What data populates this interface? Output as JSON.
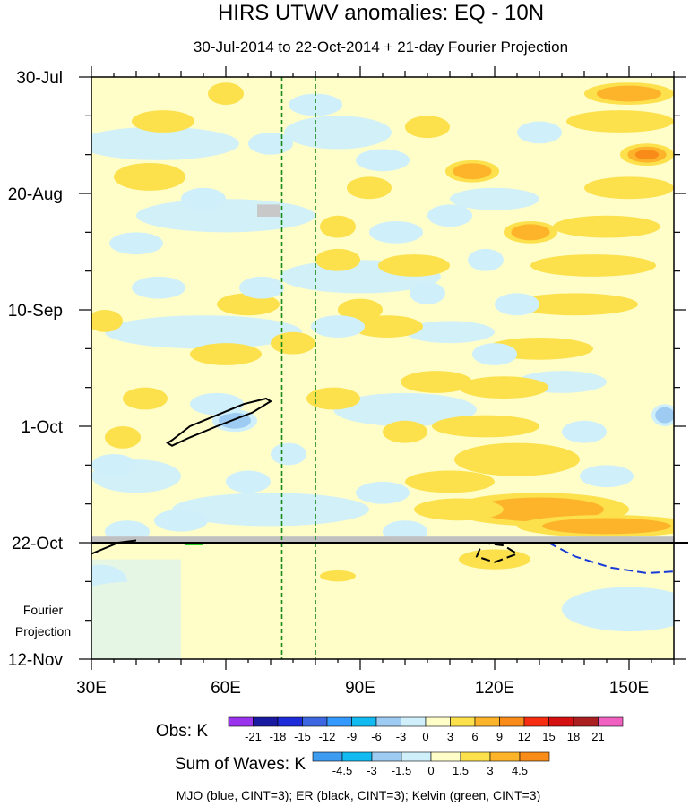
{
  "chart_data": {
    "type": "heatmap",
    "title": "HIRS UTWV anomalies: EQ - 10N",
    "subtitle": "30-Jul-2014 to 22-Oct-2014 + 21-day Fourier Projection",
    "x_axis": {
      "label": "",
      "range": [
        30,
        160
      ],
      "tick_values": [
        30,
        60,
        90,
        120,
        150
      ],
      "tick_labels": [
        "30E",
        "60E",
        "90E",
        "120E",
        "150E"
      ]
    },
    "y_axis": {
      "label": "",
      "range_days": [
        0,
        105
      ],
      "tick_days": [
        0,
        21,
        42,
        63,
        84,
        105
      ],
      "tick_labels": [
        "30-Jul",
        "20-Aug",
        "10-Sep",
        "1-Oct",
        "22-Oct",
        "12-Nov"
      ],
      "direction": "time increases downward"
    },
    "projection_label": [
      "Fourier",
      "Projection"
    ],
    "observation_end_day": 84,
    "reference_longitudes": [
      72.5,
      80
    ],
    "obs_legend": {
      "label": "Obs: K",
      "levels": [
        "-21",
        "-18",
        "-15",
        "-12",
        "-9",
        "-6",
        "-3",
        "0",
        "3",
        "6",
        "9",
        "12",
        "15",
        "18",
        "21"
      ],
      "colors": [
        "#9a33ee",
        "#1a1aa0",
        "#1e2bd8",
        "#3d67e0",
        "#3399ff",
        "#11bbf2",
        "#9dcbf2",
        "#cfeffb",
        "#fffec9",
        "#fce04c",
        "#fdb32a",
        "#f98b18",
        "#f62d10",
        "#d41010",
        "#aa2020",
        "#f060c0"
      ]
    },
    "waves_legend": {
      "label": "Sum of Waves: K",
      "levels": [
        "-4.5",
        "-3",
        "-1.5",
        "0",
        "1.5",
        "3",
        "4.5"
      ],
      "colors": [
        "#3d9cf0",
        "#11bbf2",
        "#9dcbf2",
        "#cfeffb",
        "#fffec9",
        "#fce04c",
        "#fdb32a",
        "#f98b18"
      ]
    },
    "contour_note": "MJO (blue, CINT=3); ER (black, CINT=3); Kelvin (green, CINT=3)",
    "series": [
      {
        "name": "MJO",
        "color": "#1a3ad8",
        "style": "dashed",
        "points": [
          [
            132,
            84
          ],
          [
            138,
            86.5
          ],
          [
            146,
            88.5
          ],
          [
            154,
            89.5
          ],
          [
            160,
            89.2
          ]
        ]
      },
      {
        "name": "ER",
        "color": "#000000",
        "style": "solid",
        "points": [
          [
            48,
            65.5
          ],
          [
            52,
            63
          ],
          [
            58,
            61
          ],
          [
            64,
            59
          ],
          [
            69,
            58
          ],
          [
            70,
            58.5
          ],
          [
            66,
            60.5
          ],
          [
            58,
            63
          ],
          [
            52,
            65
          ],
          [
            48,
            66.5
          ],
          [
            47,
            66
          ],
          [
            48,
            65.5
          ]
        ]
      },
      {
        "name": "ER",
        "color": "#000000",
        "style": "solid",
        "points": [
          [
            30,
            86
          ],
          [
            36,
            84
          ],
          [
            40,
            83.6
          ]
        ]
      },
      {
        "name": "ER",
        "color": "#000000",
        "style": "dashed",
        "points": [
          [
            117,
            84
          ],
          [
            122,
            84.5
          ],
          [
            125,
            86
          ],
          [
            120,
            87.5
          ],
          [
            116,
            86.5
          ],
          [
            117,
            84.5
          ]
        ]
      },
      {
        "name": "Kelvin",
        "color": "#11cc11",
        "style": "solid",
        "points": [
          [
            51,
            84.3
          ],
          [
            55,
            84.3
          ]
        ]
      }
    ],
    "anomaly_blobs": [
      [
        150,
        3,
        10,
        2,
        6
      ],
      [
        148,
        8,
        12,
        2,
        5
      ],
      [
        154,
        14,
        6,
        2,
        9
      ],
      [
        150,
        20,
        10,
        2,
        5
      ],
      [
        145,
        27,
        12,
        2,
        5
      ],
      [
        142,
        34,
        14,
        2,
        5
      ],
      [
        138,
        41,
        14,
        2,
        5
      ],
      [
        130,
        49,
        12,
        2,
        5
      ],
      [
        122,
        56,
        10,
        2,
        5
      ],
      [
        118,
        63,
        12,
        2,
        5
      ],
      [
        125,
        69,
        14,
        3,
        5
      ],
      [
        110,
        73,
        10,
        2,
        5
      ],
      [
        130,
        78,
        20,
        3,
        6
      ],
      [
        145,
        81,
        20,
        2,
        8
      ],
      [
        112,
        78,
        10,
        2,
        5
      ],
      [
        128,
        28,
        6,
        2,
        8
      ],
      [
        115,
        17,
        6,
        2,
        6
      ],
      [
        102,
        34,
        8,
        2,
        5
      ],
      [
        96,
        45,
        8,
        2,
        5
      ],
      [
        107,
        55,
        8,
        2,
        5
      ],
      [
        84,
        58,
        6,
        2,
        4
      ],
      [
        60,
        50,
        8,
        2,
        5
      ],
      [
        65,
        41,
        7,
        2,
        4
      ],
      [
        43,
        18,
        8,
        2.5,
        5
      ],
      [
        46,
        8,
        7,
        2,
        4
      ],
      [
        33,
        44,
        4,
        2,
        5
      ],
      [
        42,
        58,
        5,
        2,
        4
      ],
      [
        37,
        65,
        4,
        2,
        4
      ],
      [
        85,
        33,
        5,
        2,
        4
      ],
      [
        75,
        48,
        5,
        2,
        3
      ],
      [
        90,
        42,
        5,
        2,
        3
      ],
      [
        105,
        9,
        5,
        2,
        3
      ],
      [
        92,
        20,
        5,
        2,
        3
      ],
      [
        60,
        3,
        4,
        2,
        3
      ],
      [
        85,
        27,
        4,
        2,
        3
      ],
      [
        100,
        64,
        5,
        2,
        3
      ],
      [
        62,
        62,
        5,
        2,
        -7
      ],
      [
        58,
        59,
        6,
        2,
        -5
      ],
      [
        40,
        30,
        6,
        2,
        -5
      ],
      [
        55,
        22,
        5,
        2,
        -5
      ],
      [
        35,
        70,
        5,
        2,
        -4
      ],
      [
        80,
        5,
        6,
        2,
        -4
      ],
      [
        70,
        12,
        5,
        2,
        -3
      ],
      [
        95,
        15,
        6,
        2,
        -4
      ],
      [
        98,
        28,
        6,
        2,
        -4
      ],
      [
        45,
        38,
        6,
        2,
        -4
      ],
      [
        85,
        45,
        6,
        2,
        -3
      ],
      [
        65,
        73,
        5,
        2,
        -3
      ],
      [
        95,
        75,
        6,
        2,
        -3
      ],
      [
        125,
        41,
        5,
        2,
        -3
      ],
      [
        120,
        50,
        5,
        2,
        -3
      ],
      [
        140,
        64,
        5,
        2,
        -3
      ],
      [
        158,
        61,
        3,
        2,
        -7
      ],
      [
        110,
        25,
        5,
        2,
        -4
      ],
      [
        130,
        10,
        5,
        2,
        -3
      ],
      [
        50,
        80,
        6,
        2,
        -3
      ],
      [
        38,
        82,
        5,
        2,
        -4
      ],
      [
        68,
        38,
        5,
        2,
        -4
      ],
      [
        74,
        68,
        4,
        2,
        -3
      ],
      [
        105,
        39,
        4,
        2,
        -4
      ],
      [
        118,
        33,
        4,
        2,
        -3
      ],
      [
        145,
        72,
        6,
        2,
        -3
      ],
      [
        100,
        82,
        5,
        2,
        -3
      ],
      [
        120,
        87,
        8,
        1.8,
        3
      ],
      [
        32,
        91,
        6,
        3,
        -2
      ],
      [
        40,
        94,
        14,
        3,
        1.5
      ],
      [
        80,
        96,
        30,
        4,
        1
      ],
      [
        150,
        96,
        15,
        4,
        -1
      ],
      [
        85,
        90,
        4,
        1,
        3
      ]
    ]
  }
}
